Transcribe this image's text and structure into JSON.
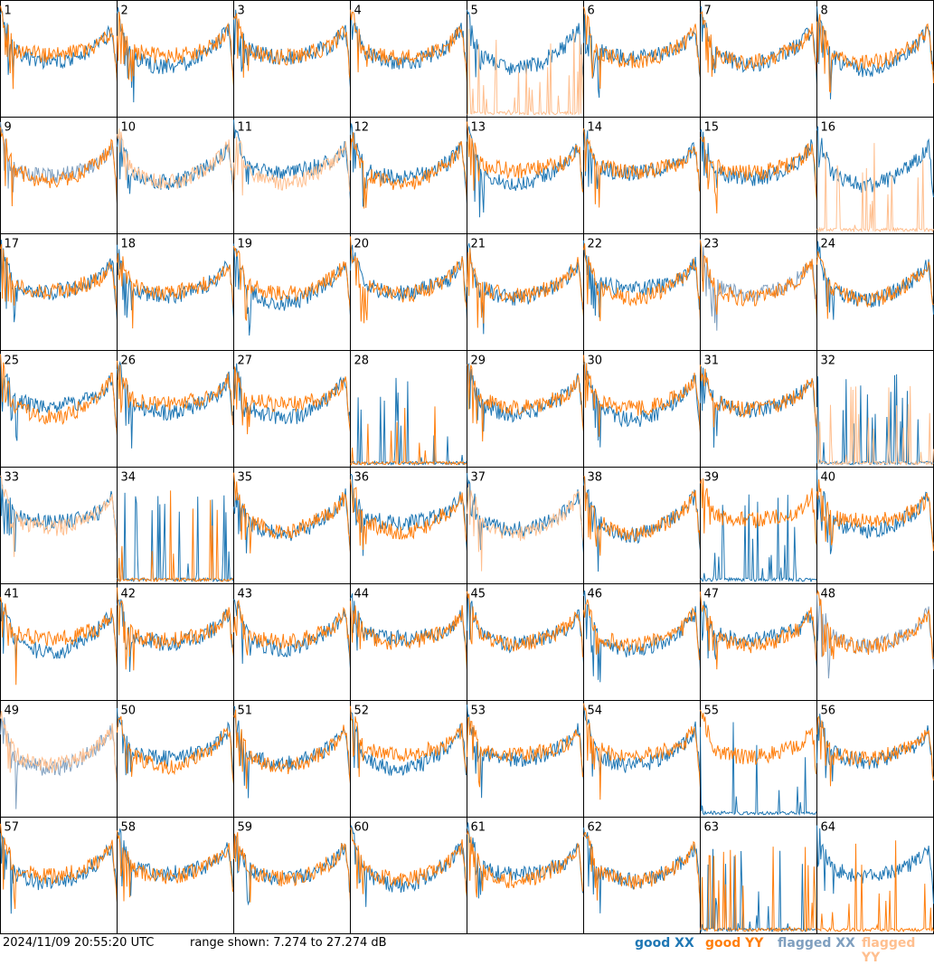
{
  "chart_data": {
    "type": "line",
    "panel_count": 64,
    "columns": 8,
    "rows": 8,
    "panels": [
      "1",
      "2",
      "3",
      "4",
      "5",
      "6",
      "7",
      "8",
      "9",
      "10",
      "11",
      "12",
      "13",
      "14",
      "15",
      "16",
      "17",
      "18",
      "19",
      "20",
      "21",
      "22",
      "23",
      "24",
      "25",
      "26",
      "27",
      "28",
      "29",
      "30",
      "31",
      "32",
      "33",
      "34",
      "35",
      "36",
      "37",
      "38",
      "39",
      "40",
      "41",
      "42",
      "43",
      "44",
      "45",
      "46",
      "47",
      "48",
      "49",
      "50",
      "51",
      "52",
      "53",
      "54",
      "55",
      "56",
      "57",
      "58",
      "59",
      "60",
      "61",
      "62",
      "63",
      "64"
    ],
    "ylim": [
      7.274,
      27.274
    ],
    "yunit": "dB",
    "series": [
      {
        "name": "good XX",
        "color": "#1f77b4"
      },
      {
        "name": "good YY",
        "color": "#ff7f0e"
      },
      {
        "name": "flagged XX",
        "color": "#7f9fbf"
      },
      {
        "name": "flagged YY",
        "color": "#ffbf8f"
      }
    ],
    "flagged_xx_panels": [
      9,
      23,
      48,
      49
    ],
    "flagged_yy_panels": [
      5,
      10,
      11,
      16,
      32,
      33,
      37,
      49
    ],
    "dead_xx_panels": [
      28,
      32,
      34,
      39,
      55,
      63
    ],
    "dead_yy_panels": [
      5,
      16,
      28,
      32,
      34,
      63,
      64
    ]
  },
  "footer": {
    "timestamp": "2024/11/09 20:55:20 UTC",
    "range_text": "range shown: 7.274 to 27.274 dB",
    "legend": {
      "good_xx": "good XX",
      "good_yy": "good YY",
      "flagged_xx": "flagged XX",
      "flagged_yy": "flagged YY"
    }
  }
}
